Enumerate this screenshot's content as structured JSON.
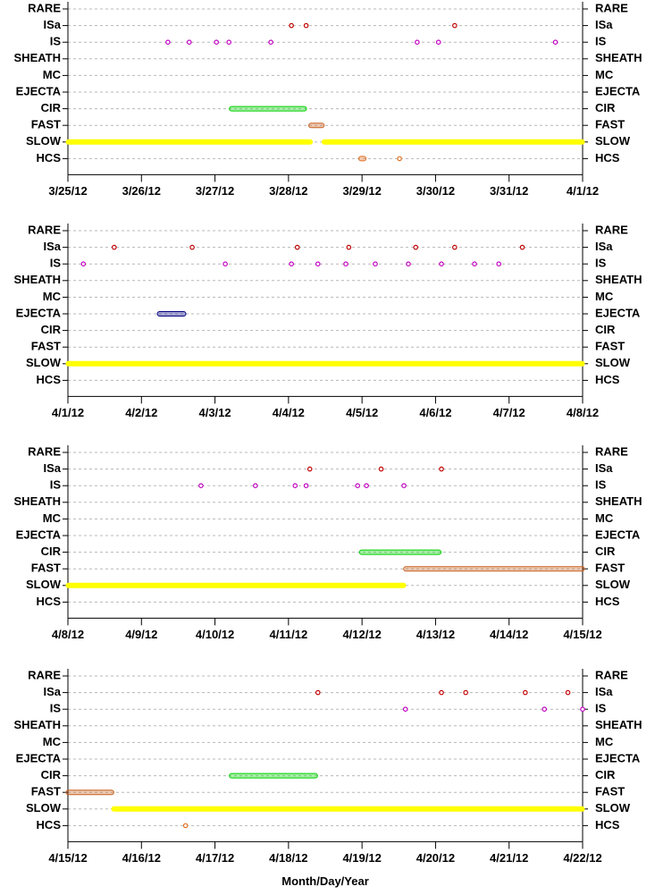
{
  "chart_data": [
    {
      "type": "scatter",
      "categories": [
        "RARE",
        "ISa",
        "IS",
        "SHEATH",
        "MC",
        "EJECTA",
        "CIR",
        "FAST",
        "SLOW",
        "HCS"
      ],
      "xlim": [
        85,
        92
      ],
      "xticks": [
        {
          "value": 85,
          "label": "3/25/12"
        },
        {
          "value": 86,
          "label": "3/26/12"
        },
        {
          "value": 87,
          "label": "3/27/12"
        },
        {
          "value": 88,
          "label": "3/28/12"
        },
        {
          "value": 89,
          "label": "3/29/12"
        },
        {
          "value": 90,
          "label": "3/30/12"
        },
        {
          "value": 91,
          "label": "3/31/12"
        },
        {
          "value": 92,
          "label": "4/1/12"
        }
      ],
      "grid": true,
      "series": [
        {
          "points": [],
          "intervals": []
        },
        {
          "color": "#c00000",
          "points": [
            88.04,
            88.24,
            90.26
          ],
          "intervals": []
        },
        {
          "color": "#c000c0",
          "points": [
            86.36,
            86.65,
            87.02,
            87.19,
            87.76,
            89.75,
            90.04,
            91.63
          ],
          "intervals": []
        },
        {
          "points": [],
          "intervals": []
        },
        {
          "points": [],
          "intervals": []
        },
        {
          "points": [],
          "intervals": []
        },
        {
          "color": "#00d000",
          "points": [],
          "intervals": [
            [
              87.22,
              88.22
            ]
          ]
        },
        {
          "color": "#c86020",
          "points": [],
          "intervals": [
            [
              88.3,
              88.46
            ]
          ]
        },
        {
          "color": "#ffff00",
          "points": [],
          "intervals": [
            [
              85,
              88.3
            ],
            [
              88.48,
              92
            ]
          ]
        },
        {
          "color": "#e07020",
          "points": [
            89.51
          ],
          "intervals": [
            [
              88.98,
              89.03
            ]
          ]
        }
      ]
    },
    {
      "type": "scatter",
      "categories": [
        "RARE",
        "ISa",
        "IS",
        "SHEATH",
        "MC",
        "EJECTA",
        "CIR",
        "FAST",
        "SLOW",
        "HCS"
      ],
      "xlim": [
        92,
        99
      ],
      "xticks": [
        {
          "value": 92,
          "label": "4/1/12"
        },
        {
          "value": 93,
          "label": "4/2/12"
        },
        {
          "value": 94,
          "label": "4/3/12"
        },
        {
          "value": 95,
          "label": "4/4/12"
        },
        {
          "value": 96,
          "label": "4/5/12"
        },
        {
          "value": 97,
          "label": "4/6/12"
        },
        {
          "value": 98,
          "label": "4/7/12"
        },
        {
          "value": 99,
          "label": "4/8/12"
        }
      ],
      "grid": true,
      "series": [
        {
          "points": [],
          "intervals": []
        },
        {
          "color": "#c00000",
          "points": [
            92.63,
            93.69,
            95.12,
            95.82,
            96.73,
            97.26,
            98.18
          ],
          "intervals": []
        },
        {
          "color": "#c000c0",
          "points": [
            92.21,
            94.14,
            95.04,
            95.4,
            95.78,
            96.18,
            96.63,
            97.08,
            97.53,
            97.86
          ],
          "intervals": []
        },
        {
          "points": [],
          "intervals": []
        },
        {
          "points": [],
          "intervals": []
        },
        {
          "color": "#000080",
          "points": [],
          "intervals": [
            [
              93.24,
              93.58
            ]
          ]
        },
        {
          "points": [],
          "intervals": []
        },
        {
          "points": [],
          "intervals": []
        },
        {
          "color": "#ffff00",
          "points": [],
          "intervals": [
            [
              92,
              99
            ]
          ]
        },
        {
          "points": [],
          "intervals": []
        }
      ]
    },
    {
      "type": "scatter",
      "categories": [
        "RARE",
        "ISa",
        "IS",
        "SHEATH",
        "MC",
        "EJECTA",
        "CIR",
        "FAST",
        "SLOW",
        "HCS"
      ],
      "xlim": [
        99,
        106
      ],
      "xticks": [
        {
          "value": 99,
          "label": "4/8/12"
        },
        {
          "value": 100,
          "label": "4/9/12"
        },
        {
          "value": 101,
          "label": "4/10/12"
        },
        {
          "value": 102,
          "label": "4/11/12"
        },
        {
          "value": 103,
          "label": "4/12/12"
        },
        {
          "value": 104,
          "label": "4/13/12"
        },
        {
          "value": 105,
          "label": "4/14/12"
        },
        {
          "value": 106,
          "label": "4/15/12"
        }
      ],
      "grid": true,
      "series": [
        {
          "points": [],
          "intervals": []
        },
        {
          "color": "#c00000",
          "points": [
            102.29,
            103.26,
            104.08
          ],
          "intervals": []
        },
        {
          "color": "#c000c0",
          "points": [
            100.81,
            101.55,
            102.09,
            102.24,
            102.94,
            103.06,
            103.57
          ],
          "intervals": []
        },
        {
          "points": [],
          "intervals": []
        },
        {
          "points": [],
          "intervals": []
        },
        {
          "points": [],
          "intervals": []
        },
        {
          "color": "#00d000",
          "points": [],
          "intervals": [
            [
              102.99,
              104.05
            ]
          ]
        },
        {
          "color": "#c86020",
          "points": [],
          "intervals": [
            [
              103.59,
              106
            ]
          ]
        },
        {
          "color": "#ffff00",
          "points": [],
          "intervals": [
            [
              99,
              103.57
            ]
          ]
        },
        {
          "points": [],
          "intervals": []
        }
      ]
    },
    {
      "type": "scatter",
      "categories": [
        "RARE",
        "ISa",
        "IS",
        "SHEATH",
        "MC",
        "EJECTA",
        "CIR",
        "FAST",
        "SLOW",
        "HCS"
      ],
      "xlim": [
        106,
        113
      ],
      "xticks": [
        {
          "value": 106,
          "label": "4/15/12"
        },
        {
          "value": 107,
          "label": "4/16/12"
        },
        {
          "value": 108,
          "label": "4/17/12"
        },
        {
          "value": 109,
          "label": "4/18/12"
        },
        {
          "value": 110,
          "label": "4/19/12"
        },
        {
          "value": 111,
          "label": "4/20/12"
        },
        {
          "value": 112,
          "label": "4/21/12"
        },
        {
          "value": 113,
          "label": "4/22/12"
        }
      ],
      "xlabel": "Month/Day/Year",
      "grid": true,
      "series": [
        {
          "points": [],
          "intervals": []
        },
        {
          "color": "#c00000",
          "points": [
            109.4,
            111.08,
            111.41,
            112.22,
            112.8
          ],
          "intervals": []
        },
        {
          "color": "#c000c0",
          "points": [
            110.59,
            112.48,
            113
          ],
          "intervals": []
        },
        {
          "points": [],
          "intervals": []
        },
        {
          "points": [],
          "intervals": []
        },
        {
          "points": [],
          "intervals": []
        },
        {
          "color": "#00d000",
          "points": [],
          "intervals": [
            [
              108.22,
              109.37
            ]
          ]
        },
        {
          "color": "#c86020",
          "points": [],
          "intervals": [
            [
              106,
              106.6
            ]
          ]
        },
        {
          "color": "#ffff00",
          "points": [],
          "intervals": [
            [
              106.62,
              113
            ]
          ]
        },
        {
          "color": "#e07020",
          "points": [
            107.6
          ],
          "intervals": []
        }
      ]
    }
  ]
}
